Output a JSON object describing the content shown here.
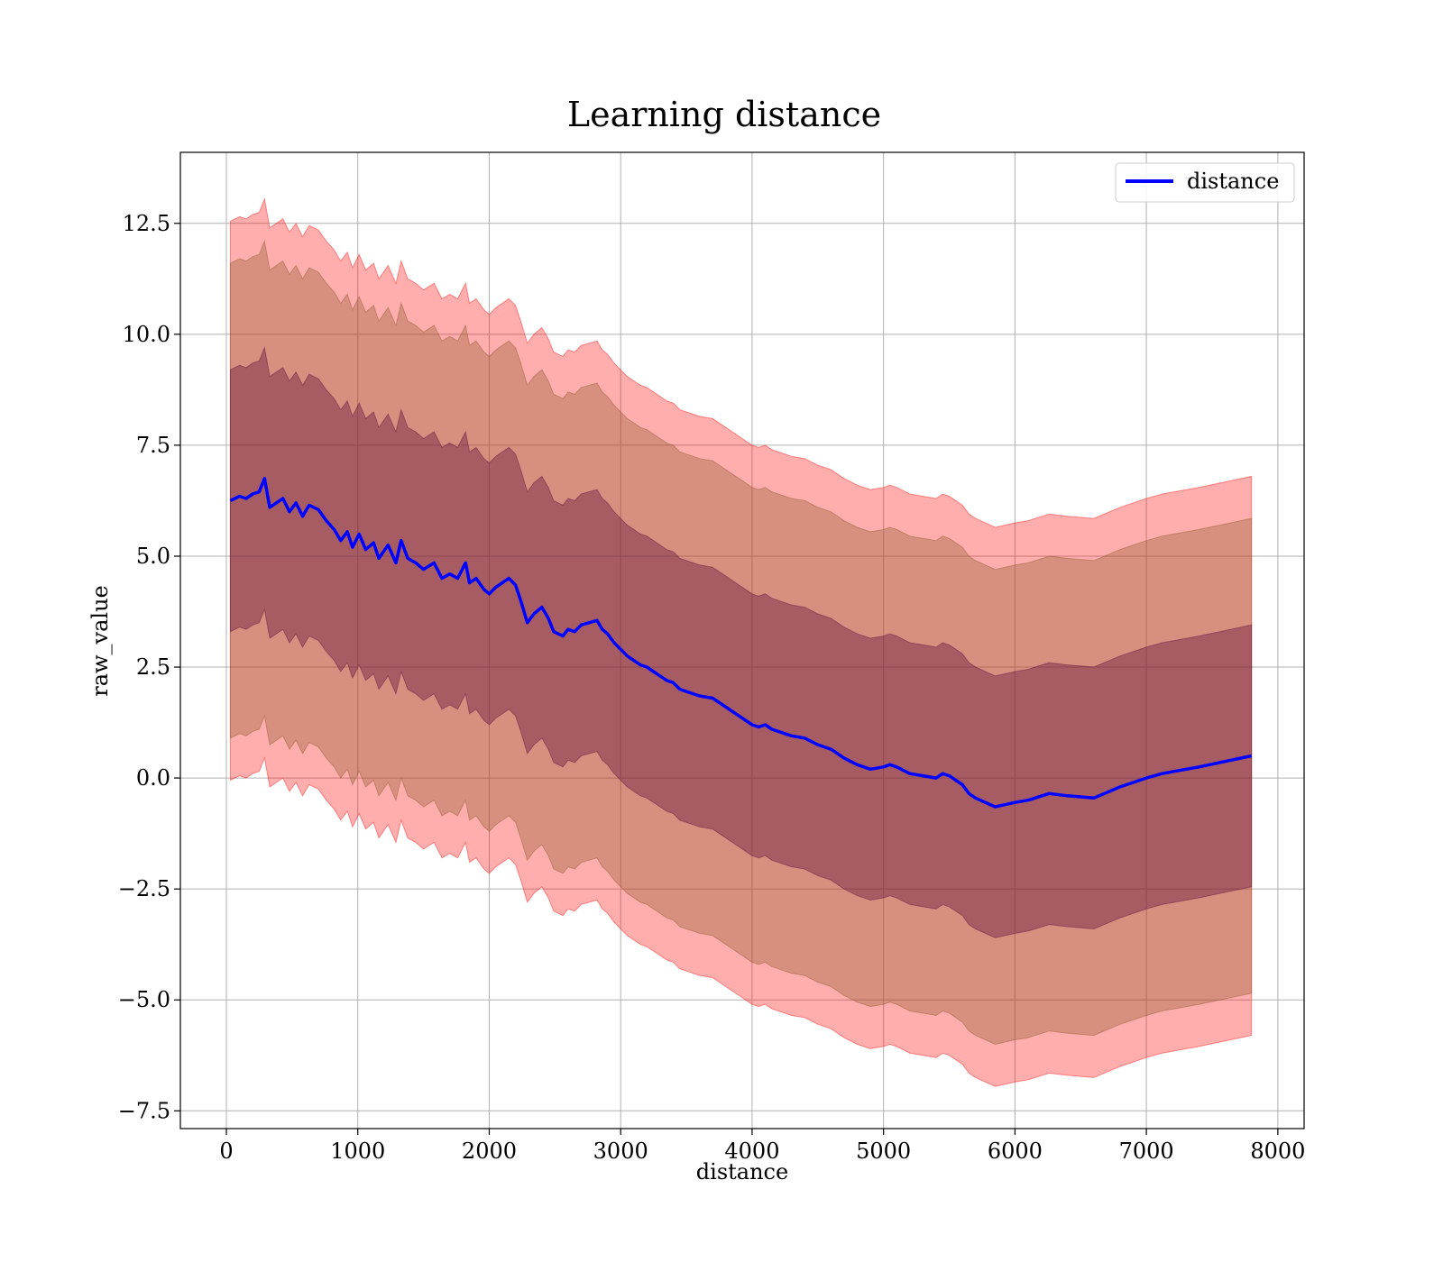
{
  "chart_data": {
    "type": "line",
    "title": "Learning distance",
    "xlabel": "distance",
    "ylabel": "raw_value",
    "xlim": [
      -350,
      8200
    ],
    "ylim": [
      -7.9,
      14.1
    ],
    "xticks": [
      0,
      1000,
      2000,
      3000,
      4000,
      5000,
      6000,
      7000,
      8000
    ],
    "xtick_labels": [
      "0",
      "1000",
      "2000",
      "3000",
      "4000",
      "5000",
      "6000",
      "7000",
      "8000"
    ],
    "yticks": [
      -7.5,
      -5.0,
      -2.5,
      0.0,
      2.5,
      5.0,
      7.5,
      10.0,
      12.5
    ],
    "ytick_labels": [
      "−7.5",
      "−5.0",
      "−2.5",
      "0.0",
      "2.5",
      "5.0",
      "7.5",
      "10.0",
      "12.5"
    ],
    "grid": true,
    "legend_position": "top-right",
    "series": [
      {
        "name": "distance",
        "color": "#0000ff",
        "x": [
          30,
          100,
          150,
          200,
          250,
          290,
          330,
          380,
          430,
          480,
          530,
          580,
          630,
          700,
          760,
          820,
          870,
          920,
          960,
          1010,
          1060,
          1120,
          1160,
          1230,
          1290,
          1330,
          1380,
          1440,
          1500,
          1580,
          1640,
          1700,
          1760,
          1820,
          1850,
          1900,
          1960,
          2000,
          2050,
          2100,
          2150,
          2200,
          2240,
          2290,
          2340,
          2400,
          2450,
          2490,
          2560,
          2600,
          2650,
          2700,
          2760,
          2820,
          2860,
          2900,
          2950,
          3000,
          3050,
          3100,
          3150,
          3200,
          3250,
          3300,
          3350,
          3400,
          3450,
          3500,
          3550,
          3600,
          3700,
          3800,
          3850,
          3900,
          4000,
          4050,
          4100,
          4150,
          4200,
          4300,
          4400,
          4500,
          4600,
          4700,
          4800,
          4900,
          5000,
          5050,
          5100,
          5200,
          5300,
          5400,
          5450,
          5500,
          5550,
          5600,
          5650,
          5700,
          5850,
          6000,
          6100,
          6260,
          6400,
          6600,
          6800,
          7000,
          7120,
          7400,
          7800
        ],
        "y": [
          6.25,
          6.35,
          6.3,
          6.4,
          6.45,
          6.75,
          6.1,
          6.2,
          6.3,
          6.0,
          6.2,
          5.9,
          6.15,
          6.05,
          5.8,
          5.6,
          5.35,
          5.55,
          5.2,
          5.5,
          5.15,
          5.3,
          4.95,
          5.25,
          4.85,
          5.35,
          4.95,
          4.85,
          4.7,
          4.85,
          4.5,
          4.6,
          4.5,
          4.85,
          4.4,
          4.5,
          4.25,
          4.15,
          4.3,
          4.4,
          4.5,
          4.35,
          4.0,
          3.5,
          3.7,
          3.85,
          3.6,
          3.3,
          3.2,
          3.35,
          3.3,
          3.45,
          3.5,
          3.55,
          3.35,
          3.25,
          3.05,
          2.9,
          2.75,
          2.65,
          2.55,
          2.5,
          2.4,
          2.3,
          2.2,
          2.15,
          2.0,
          1.95,
          1.9,
          1.85,
          1.8,
          1.6,
          1.5,
          1.4,
          1.2,
          1.15,
          1.2,
          1.1,
          1.05,
          0.95,
          0.9,
          0.75,
          0.65,
          0.45,
          0.3,
          0.2,
          0.25,
          0.3,
          0.25,
          0.1,
          0.05,
          0.0,
          0.1,
          0.05,
          -0.05,
          -0.15,
          -0.35,
          -0.45,
          -0.65,
          -0.55,
          -0.5,
          -0.35,
          -0.4,
          -0.45,
          -0.2,
          0.0,
          0.1,
          0.25,
          0.5
        ]
      }
    ],
    "bands": [
      {
        "color": "#ff0000",
        "opacity": 0.32,
        "offset": 6.3
      },
      {
        "color": "#8b5a2b",
        "opacity": 0.35,
        "offset": 5.35
      },
      {
        "color": "#5a0a3a",
        "opacity": 0.38,
        "offset": 2.95
      }
    ]
  }
}
